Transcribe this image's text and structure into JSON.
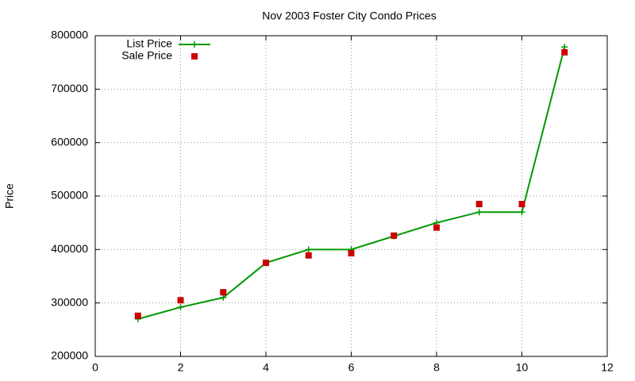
{
  "chart_data": {
    "type": "line",
    "title": "Nov 2003 Foster City Condo Prices",
    "y_label": "Price",
    "x": [
      1,
      2,
      3,
      4,
      5,
      6,
      7,
      8,
      9,
      10,
      11
    ],
    "series": [
      {
        "name": "List Price",
        "color": "#009900",
        "style": "lines+markers",
        "marker": "plus",
        "values": [
          270000,
          292000,
          310000,
          375000,
          400000,
          400000,
          425000,
          450000,
          470000,
          470000,
          779000
        ]
      },
      {
        "name": "Sale Price",
        "color": "#cc0000",
        "style": "markers",
        "marker": "square",
        "values": [
          276000,
          305000,
          320000,
          375000,
          389000,
          393000,
          426000,
          441000,
          485000,
          485000,
          769000
        ]
      }
    ],
    "xlim": [
      0,
      12
    ],
    "xticks": [
      0,
      2,
      4,
      6,
      8,
      10,
      12
    ],
    "ylim": [
      200000,
      800000
    ],
    "yticks": [
      200000,
      300000,
      400000,
      500000,
      600000,
      700000,
      800000
    ],
    "grid": true,
    "legend": "top-left"
  }
}
